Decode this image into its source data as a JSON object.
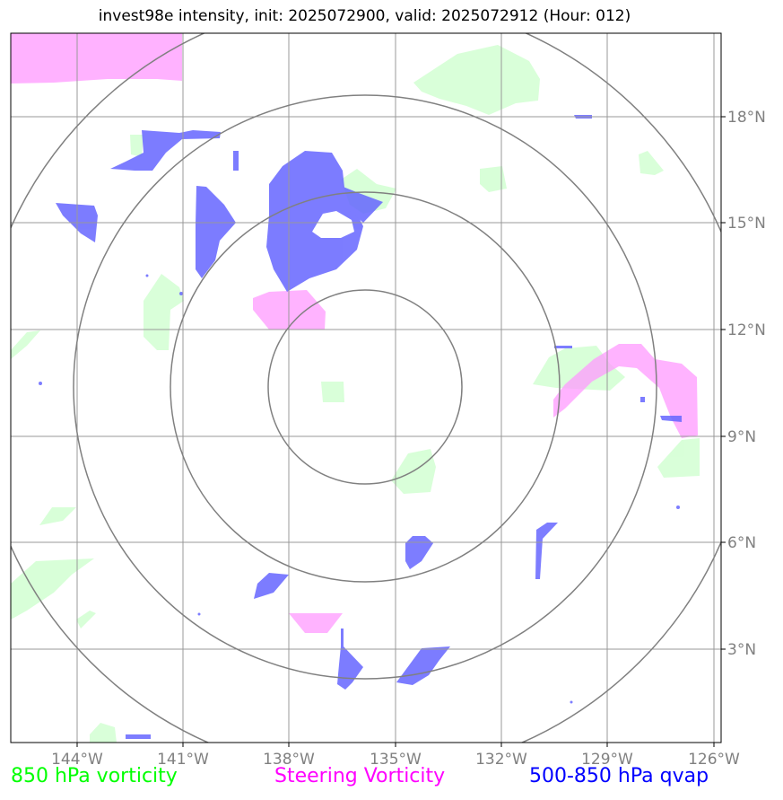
{
  "title": "invest98e intensity, init: 2025072900, valid: 2025072912 (Hour: 012)",
  "lon_ticks": [
    "144°W",
    "141°W",
    "138°W",
    "135°W",
    "132°W",
    "129°W",
    "126°W"
  ],
  "lat_ticks": [
    "18°N",
    "15°N",
    "12°N",
    "9°N",
    "6°N",
    "3°N"
  ],
  "legend": {
    "vort850": {
      "label": "850 hPa vorticity",
      "color": "#00ff00"
    },
    "steering": {
      "label": "Steering Vorticity",
      "color": "#ff00ff"
    },
    "qvap": {
      "label": "500-850 hPa qvap",
      "color": "#0000ff"
    }
  },
  "colors": {
    "vort850_fill": "#ccffcc",
    "steering_fill": "#ff99ff",
    "qvap_fill": "#6666ff",
    "grid": "#999999",
    "range_ring": "#808080",
    "tick_label": "#808080"
  },
  "range_rings": 4
}
